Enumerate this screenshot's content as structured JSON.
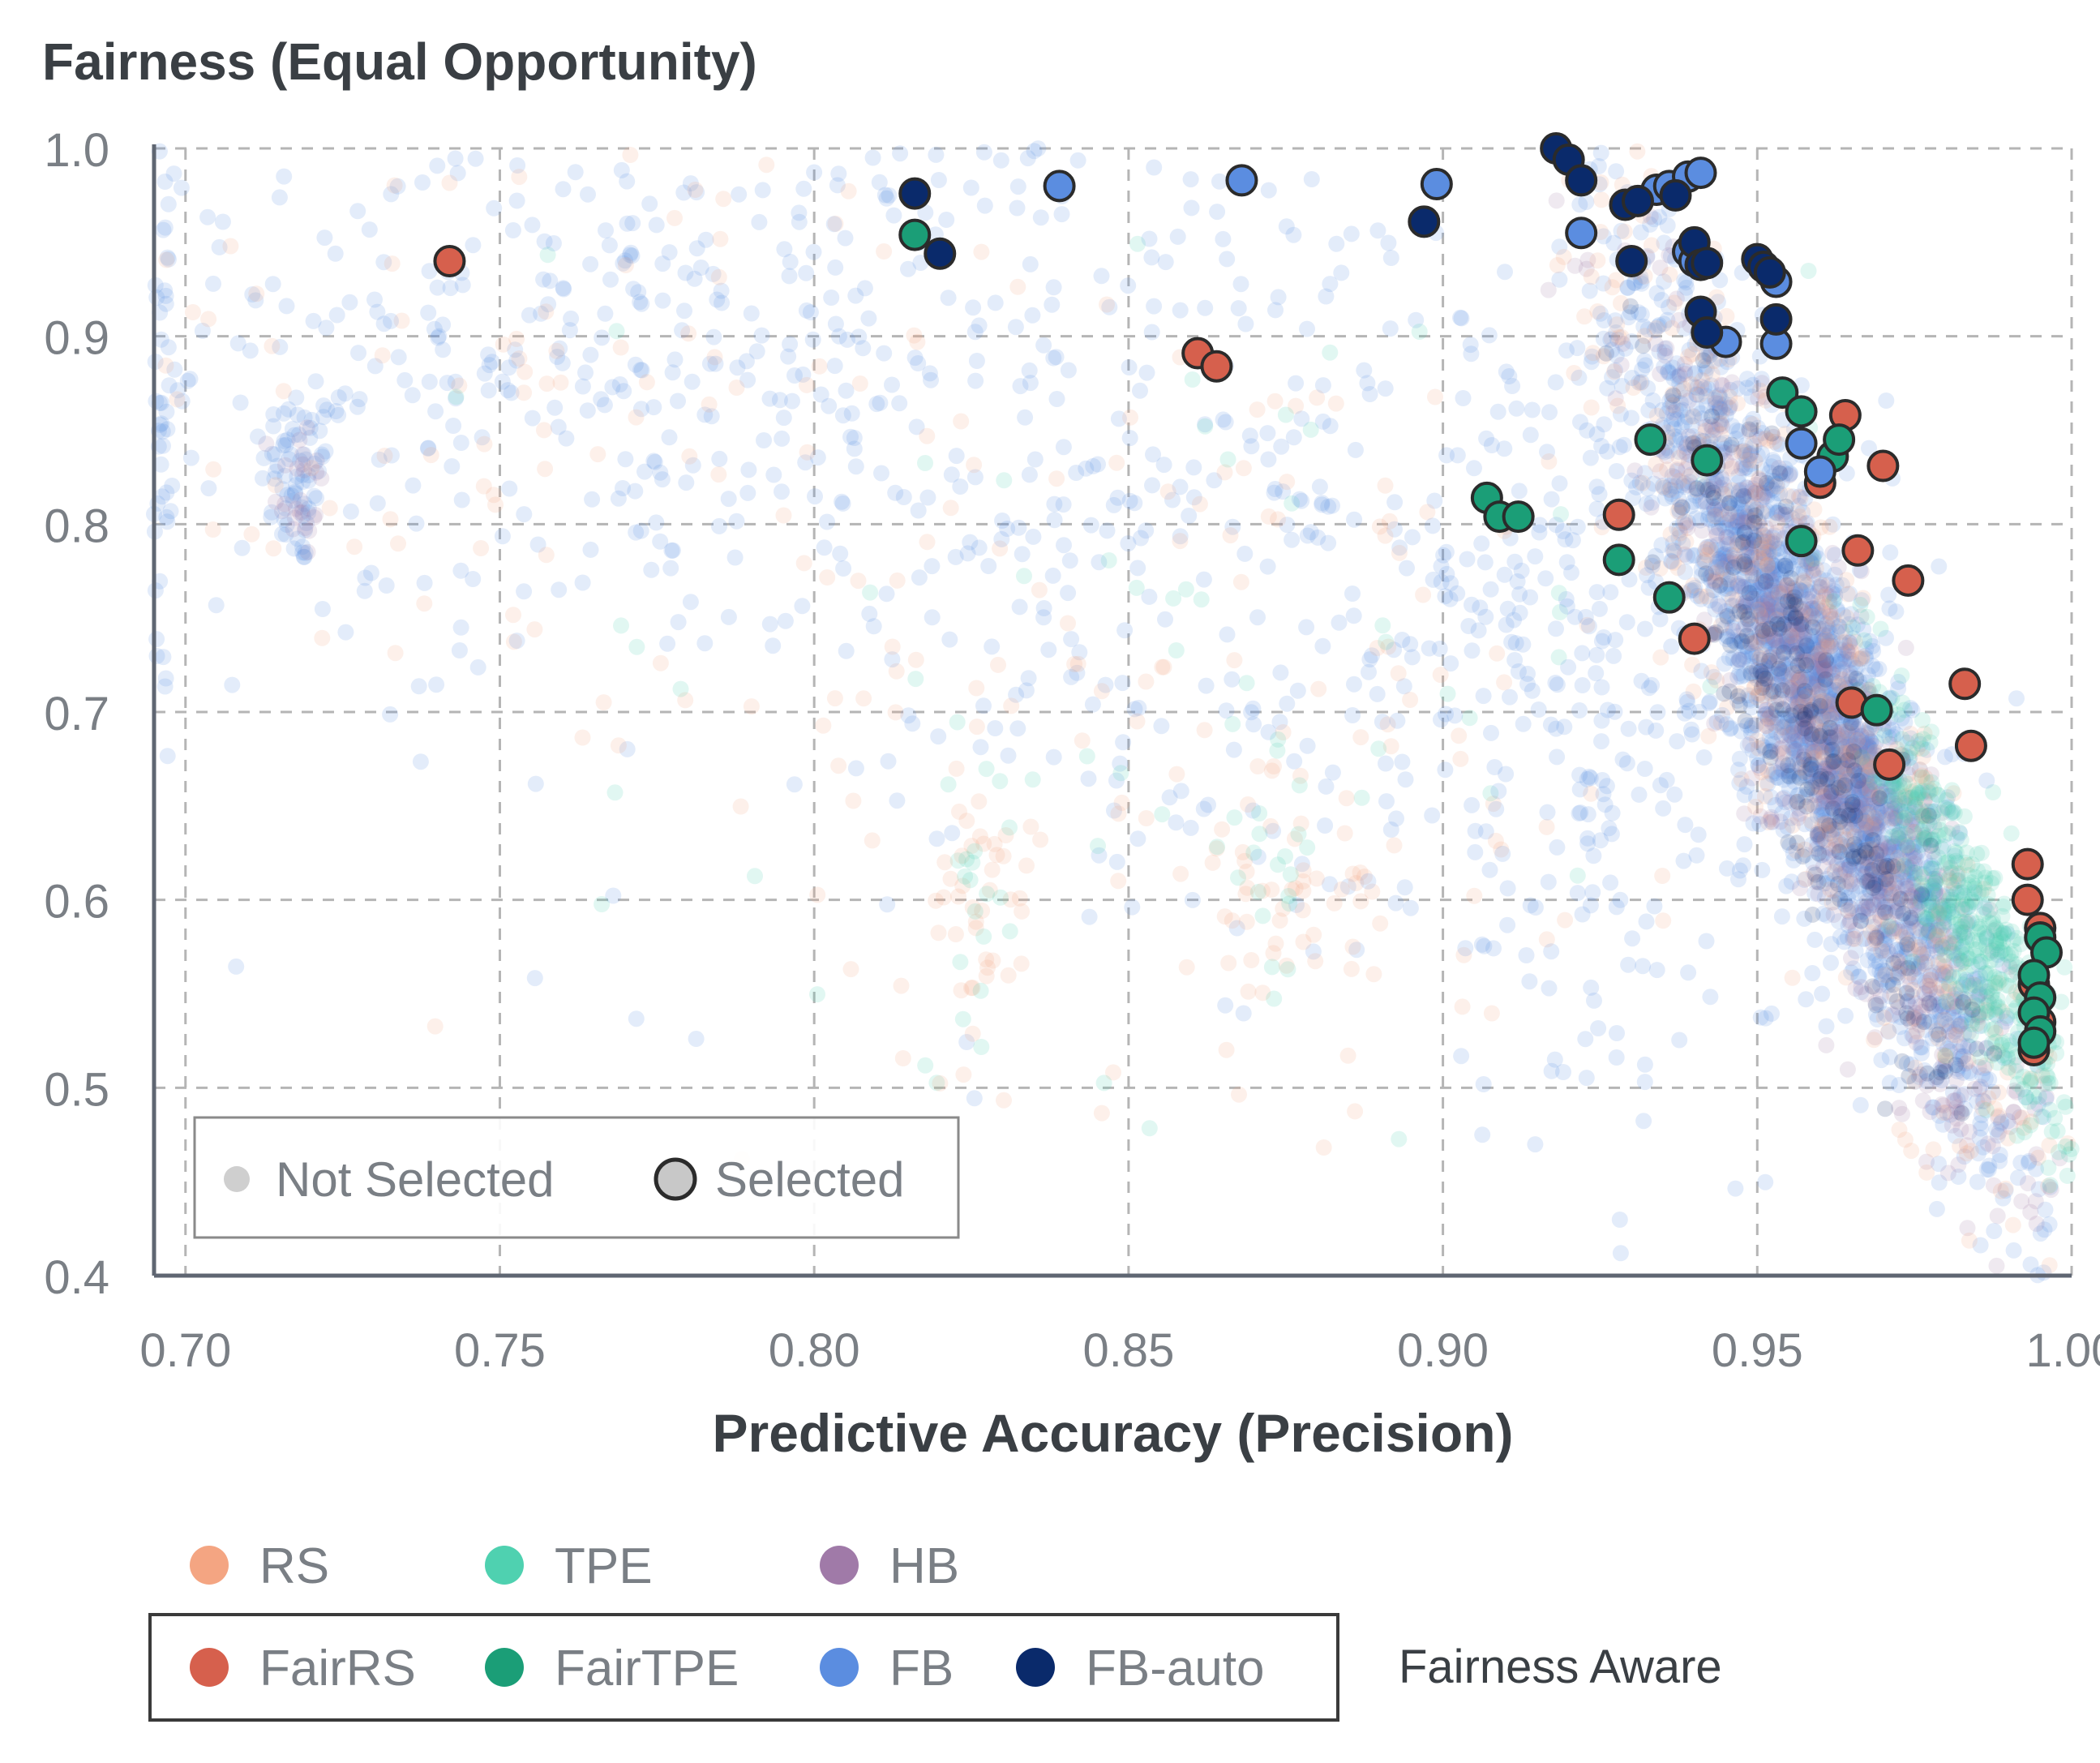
{
  "colors": {
    "RS": "#f4a582",
    "TPE": "#4fd1b0",
    "HB": "#a07aa8",
    "FairRS": "#d6604d",
    "FairTPE": "#1b9e77",
    "FB": "#5b8de0",
    "FB-auto": "#0a2a6b",
    "grid": "#b5b5b5",
    "axis": "#5f6672",
    "text": "#3a3f44",
    "tick_text": "#7a7f85"
  },
  "chart_data": {
    "type": "scatter",
    "title": "Fairness (Equal Opportunity)",
    "xlabel": "Predictive Accuracy (Precision)",
    "ylabel": "Fairness (Equal Opportunity)",
    "xlim": [
      0.695,
      1.0
    ],
    "ylim": [
      0.4,
      1.0
    ],
    "x_ticks": [
      "0.70",
      "0.75",
      "0.80",
      "0.85",
      "0.90",
      "0.95",
      "1.00"
    ],
    "y_ticks": [
      "0.4",
      "0.5",
      "0.6",
      "0.7",
      "0.8",
      "0.9",
      "1.0"
    ],
    "grid": true,
    "marker_legend": {
      "placement": "bottom-left",
      "not_selected": "Not Selected",
      "selected": "Selected"
    },
    "legend": {
      "placement": "bottom",
      "row1": [
        "RS",
        "TPE",
        "HB"
      ],
      "row2": [
        "FairRS",
        "FairTPE",
        "FB",
        "FB-auto"
      ],
      "group_label": "Fairness Aware"
    },
    "selected_series": [
      {
        "name": "FairRS",
        "points": [
          [
            0.742,
            0.94
          ],
          [
            0.861,
            0.891
          ],
          [
            0.864,
            0.884
          ],
          [
            0.928,
            0.805
          ],
          [
            0.94,
            0.739
          ],
          [
            0.96,
            0.822
          ],
          [
            0.964,
            0.858
          ],
          [
            0.965,
            0.705
          ],
          [
            0.966,
            0.786
          ],
          [
            0.971,
            0.672
          ],
          [
            0.97,
            0.831
          ],
          [
            0.974,
            0.77
          ],
          [
            0.983,
            0.715
          ],
          [
            0.984,
            0.682
          ],
          [
            0.993,
            0.619
          ],
          [
            0.993,
            0.6
          ],
          [
            0.995,
            0.585
          ],
          [
            0.994,
            0.555
          ],
          [
            0.995,
            0.535
          ],
          [
            0.994,
            0.52
          ]
        ]
      },
      {
        "name": "FairTPE",
        "points": [
          [
            0.816,
            0.954
          ],
          [
            0.907,
            0.814
          ],
          [
            0.909,
            0.804
          ],
          [
            0.912,
            0.804
          ],
          [
            0.928,
            0.781
          ],
          [
            0.933,
            0.845
          ],
          [
            0.936,
            0.761
          ],
          [
            0.942,
            0.834
          ],
          [
            0.954,
            0.87
          ],
          [
            0.957,
            0.86
          ],
          [
            0.957,
            0.791
          ],
          [
            0.962,
            0.836
          ],
          [
            0.963,
            0.845
          ],
          [
            0.969,
            0.701
          ],
          [
            0.995,
            0.58
          ],
          [
            0.996,
            0.572
          ],
          [
            0.994,
            0.56
          ],
          [
            0.995,
            0.548
          ],
          [
            0.994,
            0.54
          ],
          [
            0.995,
            0.53
          ],
          [
            0.994,
            0.524
          ]
        ]
      },
      {
        "name": "FB",
        "points": [
          [
            0.839,
            0.98
          ],
          [
            0.868,
            0.983
          ],
          [
            0.899,
            0.981
          ],
          [
            0.922,
            0.955
          ],
          [
            0.934,
            0.978
          ],
          [
            0.936,
            0.98
          ],
          [
            0.939,
            0.985
          ],
          [
            0.941,
            0.987
          ],
          [
            0.939,
            0.945
          ],
          [
            0.94,
            0.94
          ],
          [
            0.945,
            0.897
          ],
          [
            0.953,
            0.929
          ],
          [
            0.953,
            0.896
          ],
          [
            0.957,
            0.843
          ],
          [
            0.96,
            0.828
          ]
        ]
      },
      {
        "name": "FB-auto",
        "points": [
          [
            0.816,
            0.976
          ],
          [
            0.82,
            0.944
          ],
          [
            0.897,
            0.961
          ],
          [
            0.918,
            1.0
          ],
          [
            0.92,
            0.994
          ],
          [
            0.922,
            0.983
          ],
          [
            0.929,
            0.97
          ],
          [
            0.931,
            0.972
          ],
          [
            0.93,
            0.94
          ],
          [
            0.937,
            0.975
          ],
          [
            0.94,
            0.95
          ],
          [
            0.941,
            0.938
          ],
          [
            0.942,
            0.939
          ],
          [
            0.941,
            0.913
          ],
          [
            0.942,
            0.902
          ],
          [
            0.95,
            0.941
          ],
          [
            0.951,
            0.937
          ],
          [
            0.953,
            0.909
          ],
          [
            0.952,
            0.934
          ]
        ]
      }
    ],
    "unselected_clusters": [
      {
        "series": "FB",
        "center": [
          0.718,
          0.825
        ],
        "spread": [
          0.003,
          0.025
        ],
        "count": 70
      },
      {
        "series": "HB",
        "center": [
          0.718,
          0.82
        ],
        "spread": [
          0.002,
          0.02
        ],
        "count": 25
      },
      {
        "series": "FB",
        "center": [
          0.696,
          0.85
        ],
        "spread": [
          0.0015,
          0.1
        ],
        "count": 60
      },
      {
        "series": "FB",
        "center": [
          0.77,
          0.9
        ],
        "spread": [
          0.04,
          0.08
        ],
        "count": 400
      },
      {
        "series": "RS",
        "center": [
          0.76,
          0.88
        ],
        "spread": [
          0.04,
          0.09
        ],
        "count": 120
      },
      {
        "series": "FB",
        "center": [
          0.86,
          0.79
        ],
        "spread": [
          0.05,
          0.12
        ],
        "count": 400
      },
      {
        "series": "RS",
        "center": [
          0.87,
          0.7
        ],
        "spread": [
          0.04,
          0.1
        ],
        "count": 130
      },
      {
        "series": "TPE",
        "center": [
          0.86,
          0.75
        ],
        "spread": [
          0.05,
          0.12
        ],
        "count": 60
      },
      {
        "series": "RS",
        "center": [
          0.827,
          0.6
        ],
        "spread": [
          0.004,
          0.04
        ],
        "count": 40
      },
      {
        "series": "TPE",
        "center": [
          0.827,
          0.61
        ],
        "spread": [
          0.004,
          0.04
        ],
        "count": 20
      },
      {
        "series": "RS",
        "center": [
          0.873,
          0.605
        ],
        "spread": [
          0.007,
          0.035
        ],
        "count": 40
      },
      {
        "series": "TPE",
        "center": [
          0.873,
          0.61
        ],
        "spread": [
          0.004,
          0.03
        ],
        "count": 20
      },
      {
        "series": "FB",
        "center": [
          0.96,
          0.7
        ],
        "spread": [
          0.014,
          0.08
        ],
        "count": 2200
      },
      {
        "series": "HB",
        "center": [
          0.962,
          0.68
        ],
        "spread": [
          0.014,
          0.08
        ],
        "count": 700
      },
      {
        "series": "RS",
        "center": [
          0.96,
          0.7
        ],
        "spread": [
          0.02,
          0.1
        ],
        "count": 500
      },
      {
        "series": "TPE",
        "center": [
          0.985,
          0.58
        ],
        "spread": [
          0.008,
          0.05
        ],
        "count": 450
      },
      {
        "series": "FB-auto",
        "center": [
          0.96,
          0.68
        ],
        "spread": [
          0.012,
          0.07
        ],
        "count": 200
      },
      {
        "series": "FB",
        "center": [
          0.93,
          0.7
        ],
        "spread": [
          0.02,
          0.1
        ],
        "count": 300
      }
    ]
  }
}
